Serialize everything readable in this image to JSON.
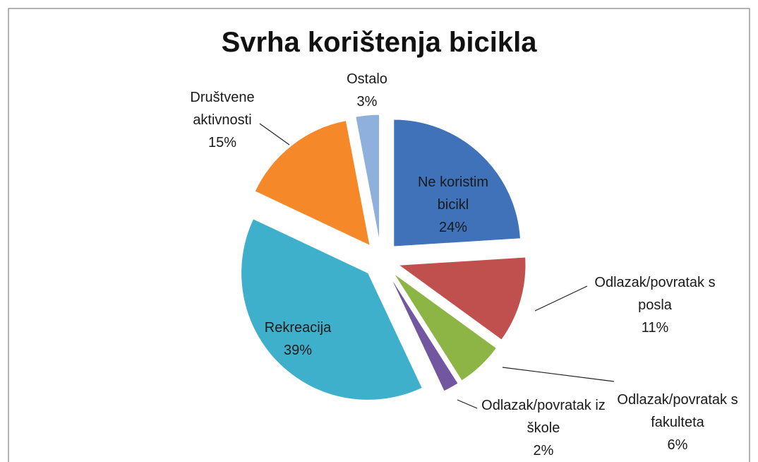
{
  "chart_data": {
    "type": "pie",
    "title": "Svrha korištenja bicikla",
    "categories": [
      "Ne koristim bicikl",
      "Odlazak/povratak s posla",
      "Odlazak/povratak s fakulteta",
      "Odlazak/povratak iz škole",
      "Rekreacija",
      "Društvene aktivnosti",
      "Ostalo"
    ],
    "values": [
      24,
      11,
      6,
      2,
      39,
      15,
      3
    ],
    "value_labels": [
      "24%",
      "11%",
      "6%",
      "2%",
      "39%",
      "15%",
      "3%"
    ],
    "colors": [
      "#3f72b8",
      "#c0504d",
      "#8db545",
      "#7256a0",
      "#3fb0cc",
      "#f5892a",
      "#8fb0dd"
    ]
  }
}
